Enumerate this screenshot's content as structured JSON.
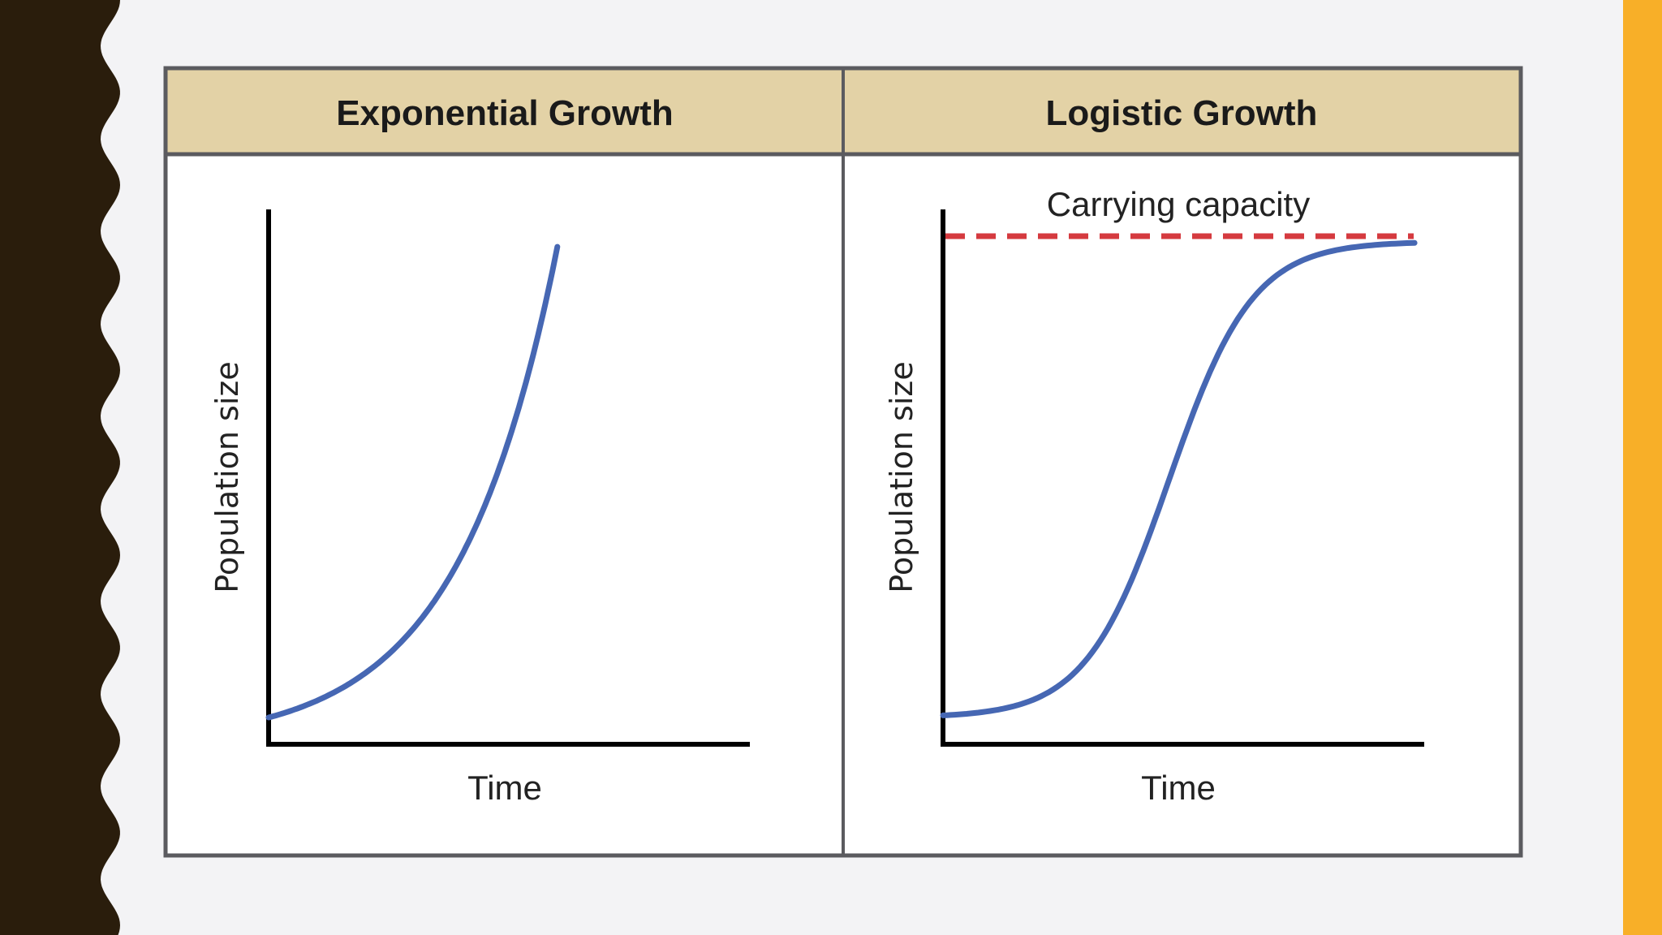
{
  "colors": {
    "left_band": "#2a1d0c",
    "right_band": "#f8af28",
    "header_fill": "#e3d2a6",
    "frame": "#5b5b5f",
    "curve": "#4667b3",
    "capacity_line": "#d53a3f",
    "axis": "#000000"
  },
  "chart_data": [
    {
      "type": "line",
      "title": "Exponential Growth",
      "xlabel": "Time",
      "ylabel": "Population size",
      "grid": false,
      "series": [
        {
          "model": "exponential",
          "x": [
            0.0,
            0.1,
            0.2,
            0.3,
            0.4,
            0.5,
            0.6
          ],
          "y": [
            0.05,
            0.1,
            0.18,
            0.3,
            0.48,
            0.7,
            0.93
          ]
        }
      ]
    },
    {
      "type": "line",
      "title": "Logistic Growth",
      "xlabel": "Time",
      "ylabel": "Population size",
      "grid": false,
      "annotations": [
        "Carrying capacity"
      ],
      "carrying_capacity": 0.95,
      "series": [
        {
          "model": "logistic",
          "x": [
            0.0,
            0.1,
            0.2,
            0.3,
            0.4,
            0.5,
            0.6,
            0.7,
            0.8,
            0.9,
            0.98
          ],
          "y": [
            0.05,
            0.07,
            0.1,
            0.16,
            0.3,
            0.55,
            0.76,
            0.87,
            0.92,
            0.94,
            0.94
          ]
        }
      ]
    }
  ]
}
